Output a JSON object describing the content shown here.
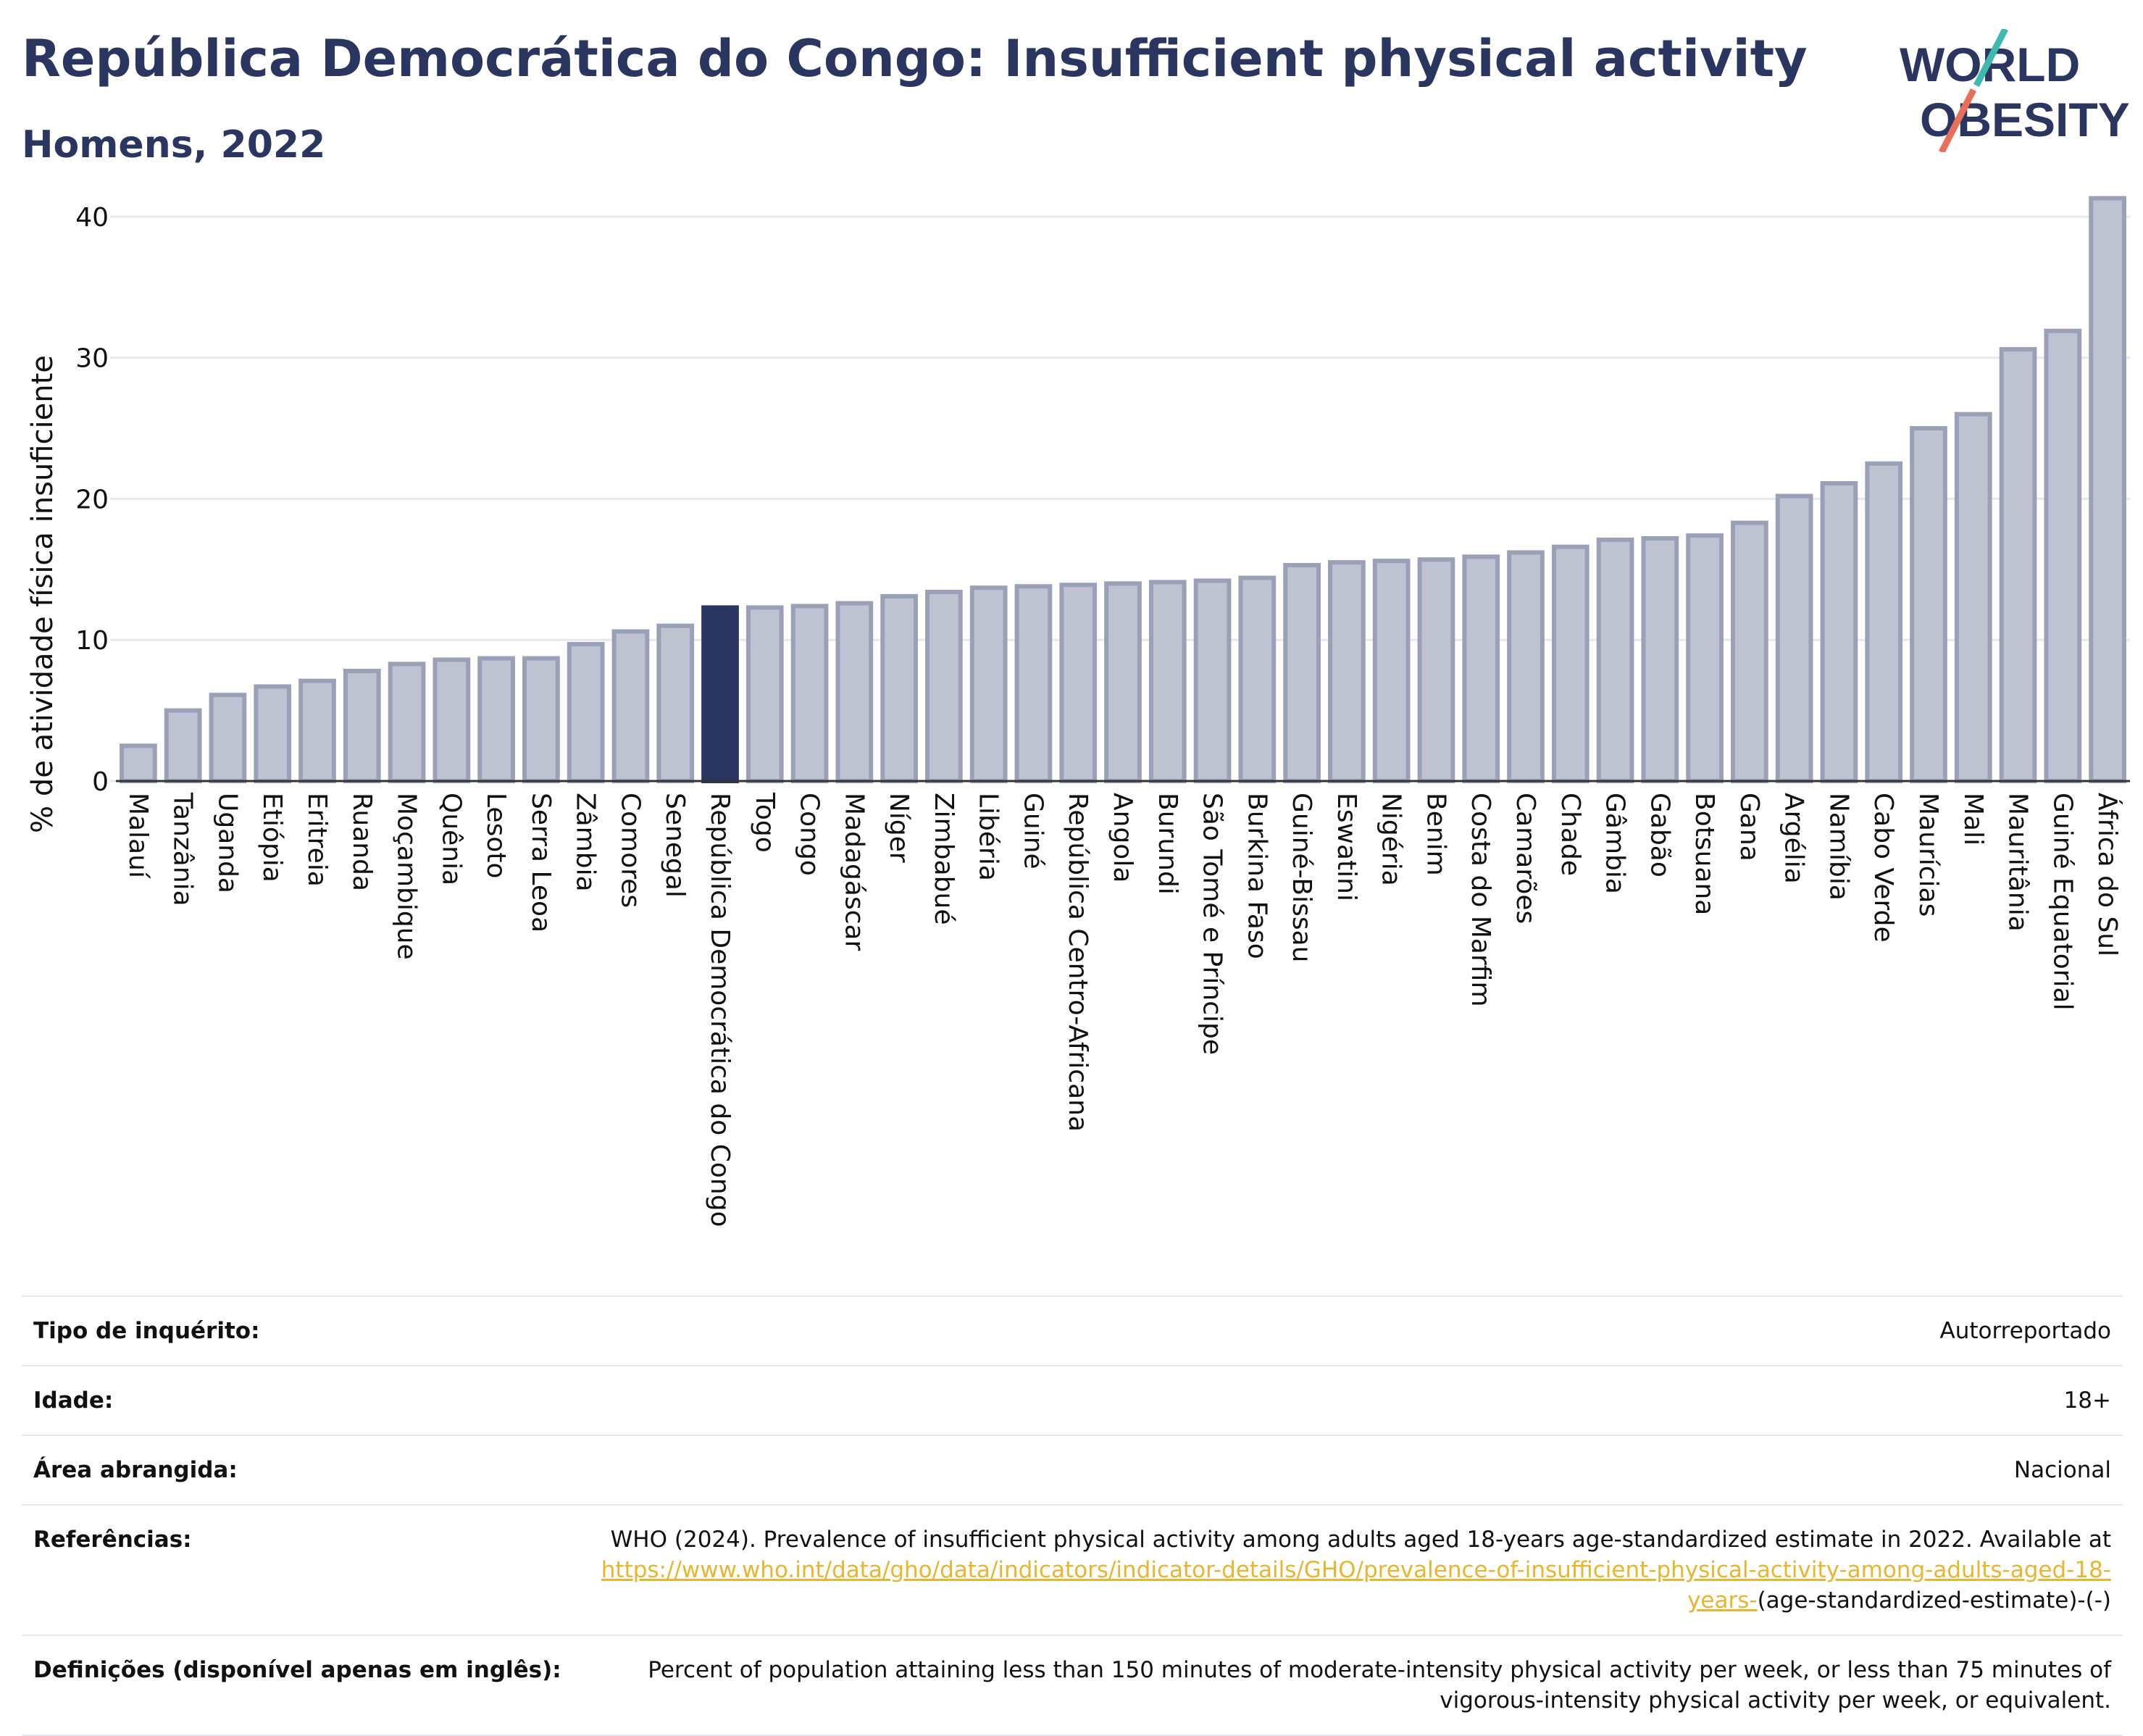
{
  "header": {
    "title": "República Democrática do Congo: Insufficient physical activity",
    "subtitle": "Homens, 2022",
    "logo_top": "WORLD",
    "logo_bottom": "OBESITY"
  },
  "colors": {
    "title": "#2a3560",
    "bar": "#bfc3d1",
    "bar_stroke": "#9aa0b8",
    "highlight": "#2a3560",
    "link": "#e8b530",
    "logo_teal": "#3fb8b0",
    "logo_coral": "#e8705a"
  },
  "chart_data": {
    "type": "bar",
    "ylabel": "% de atividade física insuficiente",
    "ylim": [
      0,
      42
    ],
    "yticks": [
      0,
      10,
      20,
      30,
      40
    ],
    "grid": true,
    "highlight": "República Democrática do Congo",
    "categories": [
      "Malauí",
      "Tanzânia",
      "Uganda",
      "Etiópia",
      "Eritreia",
      "Ruanda",
      "Moçambique",
      "Quênia",
      "Lesoto",
      "Serra Leoa",
      "Zâmbia",
      "Comores",
      "Senegal",
      "República Democrática do Congo",
      "Togo",
      "Congo",
      "Madagáscar",
      "Níger",
      "Zimbabué",
      "Libéria",
      "Guiné",
      "República Centro-Africana",
      "Angola",
      "Burundi",
      "São Tomé e Príncipe",
      "Burkina Faso",
      "Guiné-Bissau",
      "Eswatini",
      "Nigéria",
      "Benim",
      "Costa do Marfim",
      "Camarões",
      "Chade",
      "Gâmbia",
      "Gabão",
      "Botsuana",
      "Gana",
      "Argélia",
      "Namíbia",
      "Cabo Verde",
      "Maurícias",
      "Mali",
      "Mauritânia",
      "Guiné Equatorial",
      "África do Sul"
    ],
    "values": [
      2.5,
      5.0,
      6.1,
      6.7,
      7.1,
      7.8,
      8.3,
      8.6,
      8.7,
      8.7,
      9.7,
      10.6,
      11.0,
      12.3,
      12.3,
      12.4,
      12.6,
      13.1,
      13.4,
      13.7,
      13.8,
      13.9,
      14.0,
      14.1,
      14.2,
      14.4,
      15.3,
      15.5,
      15.6,
      15.7,
      15.9,
      16.2,
      16.6,
      17.1,
      17.2,
      17.4,
      18.3,
      20.2,
      21.1,
      22.5,
      25.0,
      26.0,
      30.6,
      31.9,
      41.3
    ]
  },
  "meta": {
    "survey_label": "Tipo de inquérito:",
    "survey_value": "Autorreportado",
    "age_label": "Idade:",
    "age_value": "18+",
    "area_label": "Área abrangida:",
    "area_value": "Nacional",
    "refs_label": "Referências:",
    "refs_text": "WHO (2024). Prevalence of insufficient physical activity among adults aged 18-years age-standardized estimate in 2022. Available at",
    "refs_link": "https://www.who.int/data/gho/data/indicators/indicator-details/GHO/prevalence-of-insufficient-physical-activity-among-adults-aged-18-years-",
    "refs_tail": "(age-standardized-estimate)-(-)",
    "defs_label": "Definições (disponível apenas em inglês):",
    "defs_value": "Percent of population attaining less than 150 minutes of moderate-intensity physical activity per week, or less than 75 minutes of vigorous-intensity physical activity per week, or equivalent."
  }
}
